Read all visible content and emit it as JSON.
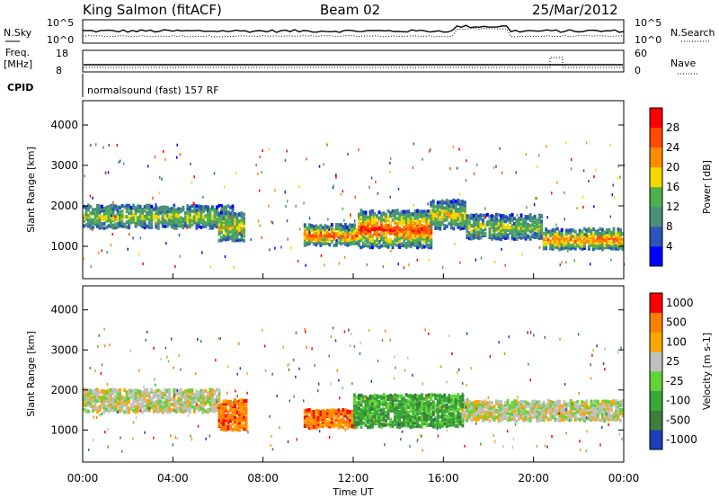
{
  "header": {
    "station": "King Salmon (fitACF)",
    "beam": "Beam 02",
    "date": "25/Mar/2012"
  },
  "strip_noise": {
    "left_label": "N.Sky",
    "right_label": "N.Search",
    "left_ticks": [
      "10^5",
      "10^0"
    ],
    "right_ticks": [
      "10^5",
      "10^0"
    ]
  },
  "strip_freq": {
    "left_label_1": "Freq.",
    "left_label_2": "[MHz]",
    "right_label": "Nave",
    "left_ticks": [
      "18",
      "8"
    ],
    "right_ticks": [
      "60",
      "0"
    ]
  },
  "cpid": {
    "label": "CPID",
    "text": "normalsound (fast) 157 RF"
  },
  "chart_data": [
    {
      "type": "heatmap",
      "quantity": "Power",
      "xlabel": "Time UT",
      "ylabel": "Slant Range [km]",
      "colorbar_label": "Power [dB]",
      "xlim_hours": [
        0,
        24
      ],
      "x_ticks": [
        "00:00",
        "04:00",
        "08:00",
        "12:00",
        "16:00",
        "20:00",
        "00:00"
      ],
      "ylim": [
        200,
        4600
      ],
      "y_ticks": [
        1000,
        2000,
        3000,
        4000
      ],
      "colorbar_ticks": [
        "28",
        "24",
        "20",
        "16",
        "12",
        "8",
        "4"
      ],
      "colors": [
        "#0000ff",
        "#2a56b8",
        "#4a8f7c",
        "#4fae4d",
        "#f5d800",
        "#ff8c00",
        "#ff4a00",
        "#ff0000"
      ],
      "echo_bands": [
        {
          "t0": 0.0,
          "t1": 6.6,
          "r_mid": 1750,
          "width": 550,
          "level": 0.45
        },
        {
          "t0": 6.0,
          "t1": 7.1,
          "r_mid": 1500,
          "width": 700,
          "level": 0.55
        },
        {
          "t0": 9.8,
          "t1": 12.2,
          "r_mid": 1300,
          "width": 500,
          "level": 0.85
        },
        {
          "t0": 12.2,
          "t1": 15.4,
          "r_mid": 1450,
          "width": 900,
          "level": 0.9
        },
        {
          "t0": 15.4,
          "t1": 17.0,
          "r_mid": 1800,
          "width": 700,
          "level": 0.55
        },
        {
          "t0": 17.0,
          "t1": 20.4,
          "r_mid": 1500,
          "width": 600,
          "level": 0.4
        },
        {
          "t0": 20.4,
          "t1": 24.0,
          "r_mid": 1200,
          "width": 500,
          "level": 0.75
        }
      ]
    },
    {
      "type": "heatmap",
      "quantity": "Velocity",
      "xlabel": "Time UT",
      "ylabel": "Slant Range [km]",
      "colorbar_label": "Velocity [m s-1]",
      "xlim_hours": [
        0,
        24
      ],
      "x_ticks": [
        "00:00",
        "04:00",
        "08:00",
        "12:00",
        "16:00",
        "20:00",
        "00:00"
      ],
      "ylim": [
        200,
        4600
      ],
      "y_ticks": [
        1000,
        2000,
        3000,
        4000
      ],
      "colorbar_ticks": [
        "1000",
        "500",
        "100",
        "25",
        "-25",
        "-100",
        "-500",
        "-1000"
      ],
      "colors": [
        "#1f3fb8",
        "#3c7f3c",
        "#38a838",
        "#63d33a",
        "#c0c0c0",
        "#ffa500",
        "#ff7f00",
        "#ff0000"
      ],
      "echo_bands": [
        {
          "t0": 0.0,
          "t1": 6.0,
          "r_mid": 1750,
          "width": 550,
          "class": 4
        },
        {
          "t0": 6.0,
          "t1": 7.2,
          "r_mid": 1400,
          "width": 750,
          "class": 6
        },
        {
          "t0": 9.8,
          "t1": 12.0,
          "r_mid": 1300,
          "width": 450,
          "class": 6
        },
        {
          "t0": 12.0,
          "t1": 16.8,
          "r_mid": 1500,
          "width": 800,
          "class": 2
        },
        {
          "t0": 16.8,
          "t1": 24.0,
          "r_mid": 1500,
          "width": 500,
          "class": 4
        }
      ]
    }
  ]
}
